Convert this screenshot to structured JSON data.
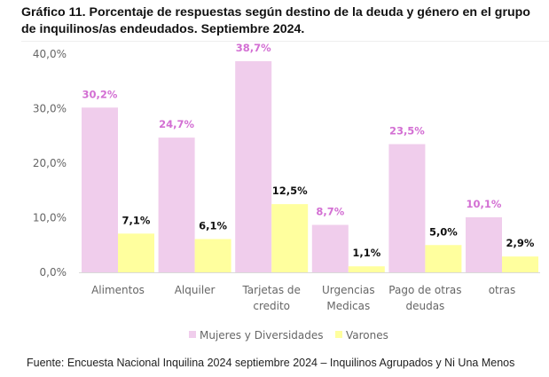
{
  "chart_data": {
    "type": "bar",
    "title": "Gráfico 11. Porcentaje de respuestas según destino de la deuda y género en el grupo de inquilinos/as endeudados. Septiembre 2024.",
    "categories": [
      [
        "Alimentos"
      ],
      [
        "Alquiler"
      ],
      [
        "Tarjetas de",
        "credito"
      ],
      [
        "Urgencias",
        "Medicas"
      ],
      [
        "Pago de otras",
        "deudas"
      ],
      [
        "otras"
      ]
    ],
    "series": [
      {
        "name": "Mujeres y Diversidades",
        "color": "#f0cdec",
        "label_color": "#d36fd3",
        "values": [
          30.2,
          24.7,
          38.7,
          8.7,
          23.5,
          10.1
        ],
        "labels": [
          "30,2%",
          "24,7%",
          "38,7%",
          "8,7%",
          "23,5%",
          "10,1%"
        ]
      },
      {
        "name": "Varones",
        "color": "#ffff9e",
        "label_color": "#111111",
        "values": [
          7.1,
          6.1,
          12.5,
          1.1,
          5.0,
          2.9
        ],
        "labels": [
          "7,1%",
          "6,1%",
          "12,5%",
          "1,1%",
          "5,0%",
          "2,9%"
        ]
      }
    ],
    "yticks": [
      "0,0%",
      "10,0%",
      "20,0%",
      "30,0%",
      "40,0%"
    ],
    "ytick_values": [
      0,
      10,
      20,
      30,
      40
    ],
    "ylim": [
      0,
      40
    ],
    "xlabel": "",
    "ylabel": "",
    "grid": false,
    "legend": "bottom"
  },
  "source": "Fuente: Encuesta Nacional Inquilina 2024 septiembre 2024 – Inquilinos Agrupados y Ni Una Menos"
}
